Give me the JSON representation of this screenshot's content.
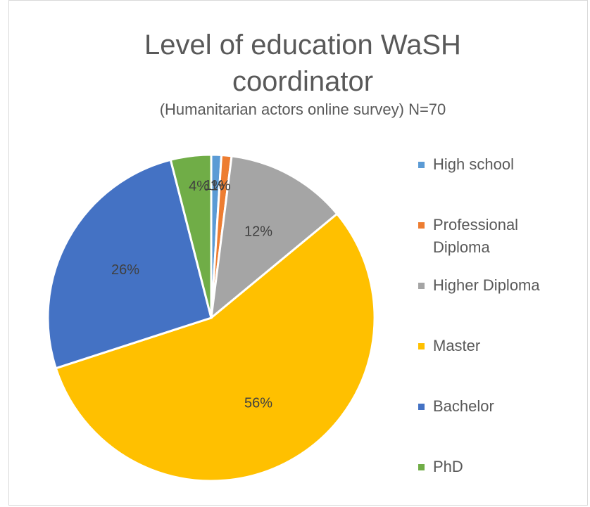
{
  "chart_data": {
    "type": "pie",
    "title": "Level of education WaSH coordinator",
    "subtitle": "(Humanitarian actors online survey) N=70",
    "categories": [
      "High school",
      "Professional Diploma",
      "Higher Diploma",
      "Master",
      "Bachelor",
      "PhD"
    ],
    "values": [
      1,
      1,
      12,
      56,
      26,
      4
    ],
    "value_labels": [
      "1%",
      "1%",
      "12%",
      "56%",
      "26%",
      "4%"
    ],
    "colors": [
      "#5b9bd5",
      "#ed7d31",
      "#a5a5a5",
      "#ffc000",
      "#4472c4",
      "#70ad47"
    ],
    "legend": "right"
  }
}
